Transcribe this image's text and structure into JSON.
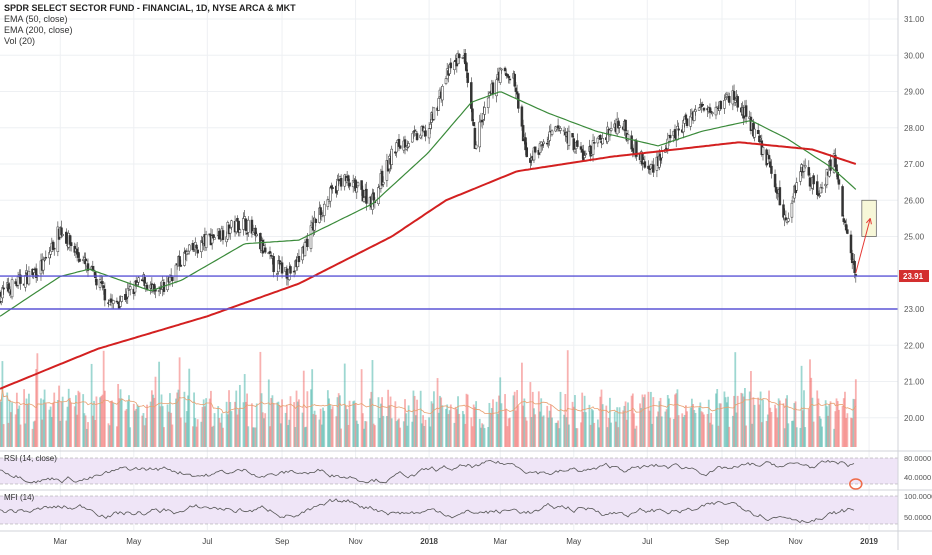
{
  "legend": {
    "title": "SPDR SELECT SECTOR FUND - FINANCIAL, 1D, NYSE ARCA & MKT",
    "ema50": "EMA (50, close)",
    "ema200": "EMA (200, close)",
    "vol": "Vol (20)"
  },
  "indicators": {
    "rsi_label": "RSI (14, close)",
    "mfi_label": "MFI (14)",
    "rsi_ticks": [
      "80.0000",
      "40.0000"
    ],
    "mfi_ticks": [
      "100.0000",
      "50.0000"
    ]
  },
  "colors": {
    "up": "#26a69a",
    "down": "#ef5350",
    "ema50": "#3a8a3a",
    "ema200": "#d32020",
    "hline": "#5b55d6",
    "price_tag": "#d32f2f",
    "band_fill": "#efe5f7",
    "annotation_box": "#f7f7d8",
    "annotation_arrow": "#e53935",
    "circle": "#ef6c4a"
  },
  "chart_data": {
    "type": "candlestick",
    "title": "SPDR SELECT SECTOR FUND - FINANCIAL, 1D, NYSE ARCA & MKT",
    "x_ticks": [
      "Mar",
      "May",
      "Jul",
      "Sep",
      "Nov",
      "2018",
      "Mar",
      "May",
      "Jul",
      "Sep",
      "Nov",
      "2019"
    ],
    "x_range": [
      "2017-01-10",
      "2019-01-25"
    ],
    "y_ticks": [
      "31.00",
      "30.00",
      "29.00",
      "28.00",
      "27.00",
      "26.00",
      "25.00",
      "23.00",
      "22.00",
      "21.00",
      "20.00"
    ],
    "ylim": [
      19.3,
      31.2
    ],
    "last_price_label": "23.91",
    "horizontal_lines": [
      23.91,
      23.0
    ],
    "price_anchors": [
      {
        "date": "2017-01-10",
        "close": 23.4
      },
      {
        "date": "2017-02-15",
        "close": 24.2
      },
      {
        "date": "2017-03-01",
        "close": 25.2
      },
      {
        "date": "2017-03-20",
        "close": 24.3
      },
      {
        "date": "2017-04-14",
        "close": 23.1
      },
      {
        "date": "2017-05-10",
        "close": 23.8
      },
      {
        "date": "2017-05-20",
        "close": 23.3
      },
      {
        "date": "2017-06-10",
        "close": 24.4
      },
      {
        "date": "2017-07-05",
        "close": 25.0
      },
      {
        "date": "2017-08-01",
        "close": 25.4
      },
      {
        "date": "2017-08-25",
        "close": 24.2
      },
      {
        "date": "2017-09-10",
        "close": 24.0
      },
      {
        "date": "2017-10-01",
        "close": 25.6
      },
      {
        "date": "2017-10-20",
        "close": 26.6
      },
      {
        "date": "2017-11-15",
        "close": 26.0
      },
      {
        "date": "2017-12-05",
        "close": 27.5
      },
      {
        "date": "2017-12-31",
        "close": 27.9
      },
      {
        "date": "2018-01-15",
        "close": 29.4
      },
      {
        "date": "2018-01-29",
        "close": 30.1
      },
      {
        "date": "2018-02-08",
        "close": 27.6
      },
      {
        "date": "2018-02-27",
        "close": 29.5
      },
      {
        "date": "2018-03-12",
        "close": 29.4
      },
      {
        "date": "2018-03-23",
        "close": 27.1
      },
      {
        "date": "2018-04-20",
        "close": 28.0
      },
      {
        "date": "2018-05-10",
        "close": 27.2
      },
      {
        "date": "2018-06-08",
        "close": 28.2
      },
      {
        "date": "2018-07-02",
        "close": 26.8
      },
      {
        "date": "2018-07-20",
        "close": 27.6
      },
      {
        "date": "2018-08-10",
        "close": 28.5
      },
      {
        "date": "2018-09-01",
        "close": 28.7
      },
      {
        "date": "2018-09-10",
        "close": 28.9
      },
      {
        "date": "2018-09-25",
        "close": 28.1
      },
      {
        "date": "2018-10-10",
        "close": 27.0
      },
      {
        "date": "2018-10-24",
        "close": 25.4
      },
      {
        "date": "2018-11-06",
        "close": 27.0
      },
      {
        "date": "2018-11-20",
        "close": 26.2
      },
      {
        "date": "2018-12-03",
        "close": 27.2
      },
      {
        "date": "2018-12-10",
        "close": 25.6
      },
      {
        "date": "2018-12-21",
        "close": 23.91
      }
    ],
    "ema50_anchors": [
      {
        "date": "2017-01-10",
        "close": 22.8
      },
      {
        "date": "2017-03-01",
        "close": 23.9
      },
      {
        "date": "2017-03-25",
        "close": 24.1
      },
      {
        "date": "2017-05-15",
        "close": 23.5
      },
      {
        "date": "2017-06-10",
        "close": 23.8
      },
      {
        "date": "2017-08-01",
        "close": 24.8
      },
      {
        "date": "2017-09-15",
        "close": 24.9
      },
      {
        "date": "2017-11-15",
        "close": 25.9
      },
      {
        "date": "2017-12-31",
        "close": 27.3
      },
      {
        "date": "2018-02-05",
        "close": 28.7
      },
      {
        "date": "2018-03-01",
        "close": 29.0
      },
      {
        "date": "2018-04-10",
        "close": 28.4
      },
      {
        "date": "2018-05-20",
        "close": 27.9
      },
      {
        "date": "2018-07-10",
        "close": 27.5
      },
      {
        "date": "2018-08-15",
        "close": 27.9
      },
      {
        "date": "2018-09-25",
        "close": 28.2
      },
      {
        "date": "2018-10-25",
        "close": 27.7
      },
      {
        "date": "2018-12-01",
        "close": 26.9
      },
      {
        "date": "2018-12-21",
        "close": 26.3
      }
    ],
    "ema200_anchors": [
      {
        "date": "2017-01-10",
        "close": 20.8
      },
      {
        "date": "2017-04-01",
        "close": 21.9
      },
      {
        "date": "2017-07-01",
        "close": 22.8
      },
      {
        "date": "2017-09-15",
        "close": 23.7
      },
      {
        "date": "2017-12-01",
        "close": 25.0
      },
      {
        "date": "2018-01-15",
        "close": 26.0
      },
      {
        "date": "2018-03-15",
        "close": 26.8
      },
      {
        "date": "2018-06-01",
        "close": 27.2
      },
      {
        "date": "2018-09-15",
        "close": 27.6
      },
      {
        "date": "2018-11-15",
        "close": 27.4
      },
      {
        "date": "2018-12-21",
        "close": 27.0
      }
    ],
    "volume_note": "Daily volume bars colored by candle direction with 20-day average line",
    "annotation": {
      "box_price_range": [
        25.0,
        26.0
      ],
      "box_dates": [
        "2018-12-26",
        "2019-01-07"
      ],
      "arrow_from": {
        "date": "2018-12-21",
        "price": 24.0
      },
      "arrow_to": {
        "date": "2019-01-02",
        "price": 25.5
      }
    }
  }
}
